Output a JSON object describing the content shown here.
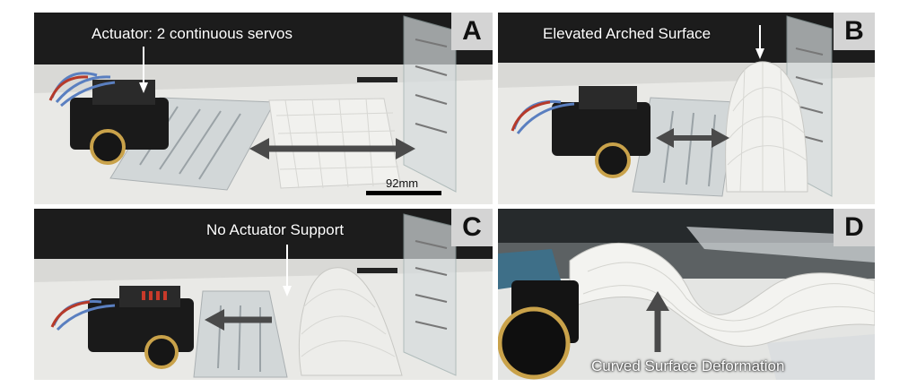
{
  "panels": {
    "a": {
      "letter": "A",
      "caption": "Actuator: 2 continuous servos",
      "scale_label": "92mm"
    },
    "b": {
      "letter": "B",
      "caption": "Elevated Arched Surface"
    },
    "c": {
      "letter": "C",
      "caption": "No Actuator Support"
    },
    "d": {
      "letter": "D",
      "caption": "Curved Surface Deformation"
    }
  },
  "colors": {
    "backdrop": "#1c1c1c",
    "table": "#e8e8e4",
    "acrylic": "#c9ced1",
    "robot": "#1a1a1a",
    "wheel_rim": "#c9a24a",
    "arrow": "#4a4a4a",
    "mesh": "#f1f1ee"
  }
}
